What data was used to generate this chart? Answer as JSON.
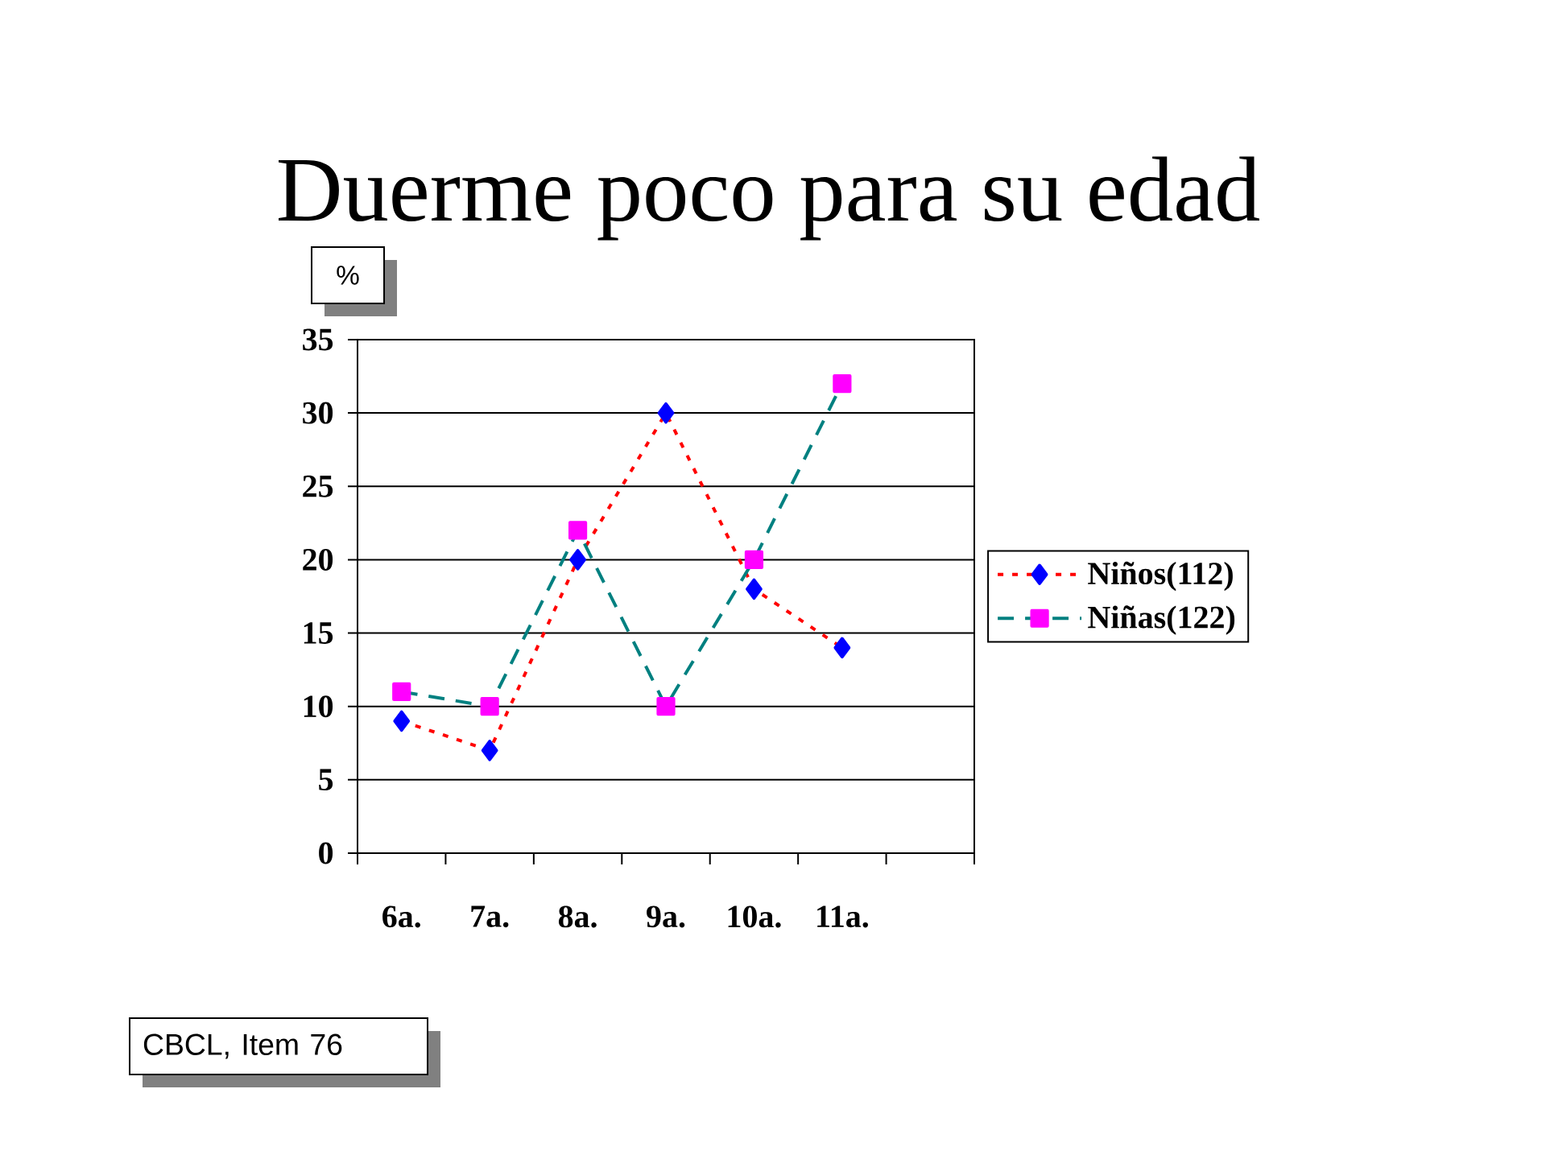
{
  "chart_data": {
    "type": "line",
    "title": "Duerme poco para su edad",
    "ylabel": "%",
    "categories": [
      "6a.",
      "7a.",
      "8a.",
      "9a.",
      "10a.",
      "11a.",
      null
    ],
    "series": [
      {
        "name": "Niños(112)",
        "color": "#ff0000",
        "colors": [
          "#0000ff",
          "#0000ff",
          "#0000ff",
          "#0000ff",
          "#0000ff",
          "#0000ff",
          null
        ],
        "marker": "diamond",
        "line_style": "dotted",
        "values": [
          9,
          7,
          20,
          30,
          18,
          14,
          null
        ]
      },
      {
        "name": "Niñas(122)",
        "color": "#008080",
        "colors": [
          "#ff00ff",
          "#ff00ff",
          "#ff00ff",
          "#ff00ff",
          "#ff00ff",
          "#ff00ff",
          null
        ],
        "marker": "square",
        "line_style": "dashed",
        "values": [
          11,
          10,
          22,
          10,
          20,
          32,
          null
        ]
      }
    ],
    "ylim": [
      0,
      35
    ],
    "yticks": [
      0,
      5,
      10,
      15,
      20,
      25,
      30,
      35
    ],
    "grid": "y",
    "legend": "right",
    "annotations": [
      "CBCL, Item 76"
    ]
  }
}
